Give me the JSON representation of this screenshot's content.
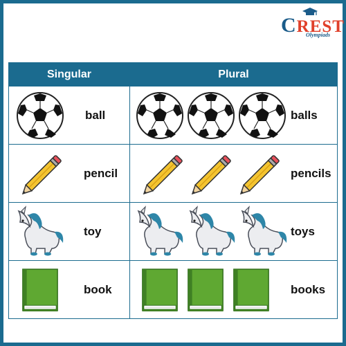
{
  "logo": {
    "text": "REST",
    "letter": "C",
    "subtitle": "Olympiads"
  },
  "table": {
    "headers": {
      "singular": "Singular",
      "plural": "Plural"
    },
    "rows": [
      {
        "item": "ball-icon",
        "singular": "ball",
        "plural": "balls"
      },
      {
        "item": "pencil-icon",
        "singular": "pencil",
        "plural": "pencils"
      },
      {
        "item": "toy-unicorn-icon",
        "singular": "toy",
        "plural": "toys"
      },
      {
        "item": "book-icon",
        "singular": "book",
        "plural": "books"
      }
    ]
  },
  "colors": {
    "frame": "#1b6b8f",
    "header_bg": "#1b6b8f",
    "logo_c": "#1b5c8a",
    "logo_rest": "#e0402a",
    "pencil": "#f4c430",
    "book": "#5fa832",
    "unicorn_mane": "#2e86a8"
  }
}
